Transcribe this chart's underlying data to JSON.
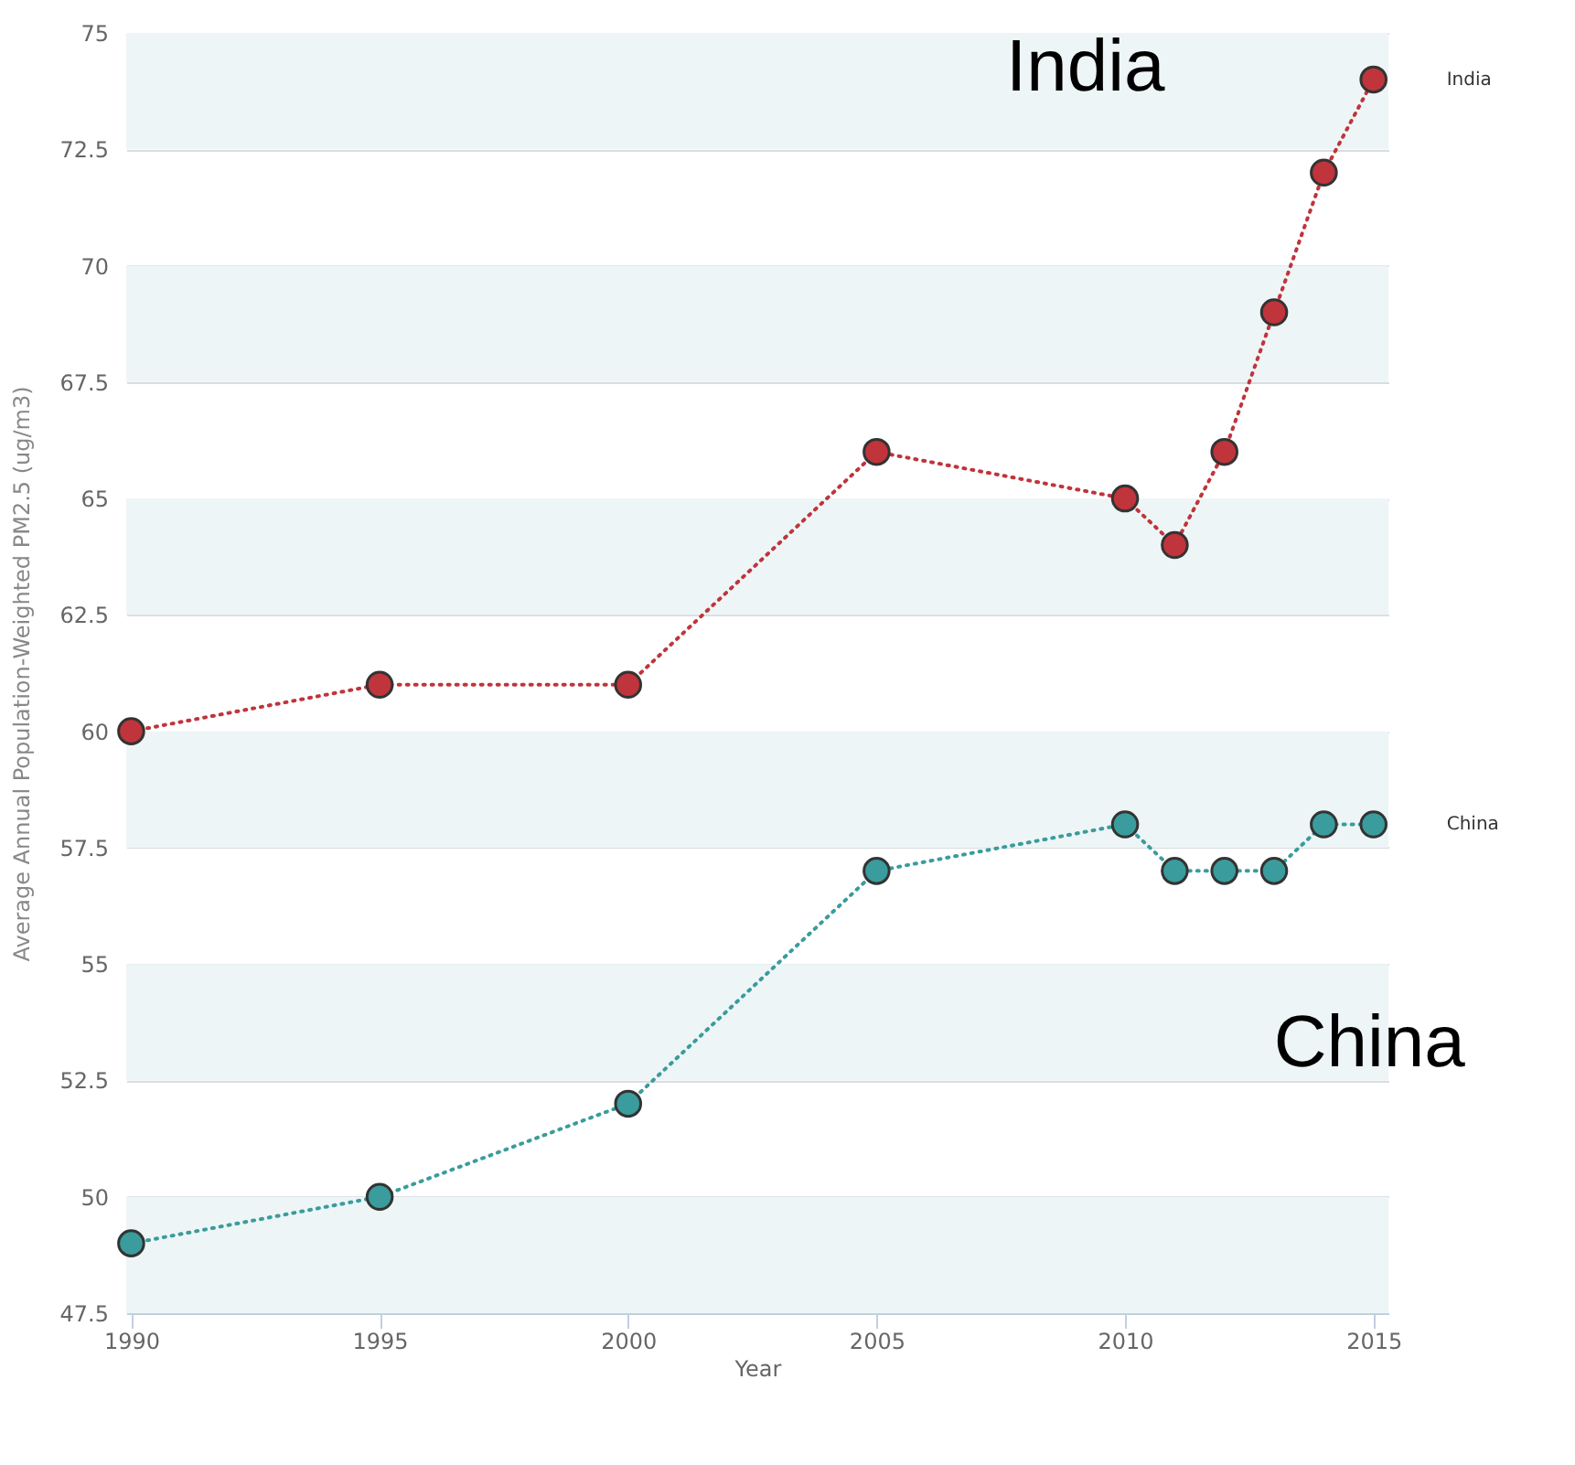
{
  "chart_data": {
    "type": "line",
    "xlabel": "Year",
    "ylabel": "Average Annual Population-Weighted PM2.5 (ug/m3)",
    "x": [
      1990,
      1995,
      2000,
      2005,
      2010,
      2011,
      2012,
      2013,
      2014,
      2015
    ],
    "series": [
      {
        "name": "India",
        "color": "#c0343b",
        "values": [
          60,
          61,
          61,
          66,
          65,
          64,
          66,
          69,
          72,
          74
        ]
      },
      {
        "name": "China",
        "color": "#3a9c9c",
        "values": [
          49,
          50,
          52,
          57,
          58,
          57,
          57,
          57,
          58,
          58
        ]
      }
    ],
    "xlim": [
      1989.9,
      2015.3
    ],
    "xticks": [
      1990,
      1995,
      2000,
      2005,
      2010,
      2015
    ],
    "ylim": [
      47.5,
      75
    ],
    "yticks": [
      47.5,
      50,
      52.5,
      55,
      57.5,
      60,
      62.5,
      65,
      67.5,
      70,
      72.5,
      75
    ],
    "grid": "y",
    "marker": "circle",
    "line_style": "dotted",
    "bands": [
      {
        "axis": "y",
        "from": 47.5,
        "to": 50,
        "color": "#eef5f6"
      },
      {
        "axis": "y",
        "from": 52.5,
        "to": 55,
        "color": "#eef5f6"
      },
      {
        "axis": "y",
        "from": 57.5,
        "to": 60,
        "color": "#eef5f6"
      },
      {
        "axis": "y",
        "from": 62.5,
        "to": 65,
        "color": "#eef5f6"
      },
      {
        "axis": "y",
        "from": 67.5,
        "to": 70,
        "color": "#eef5f6"
      },
      {
        "axis": "y",
        "from": 72.5,
        "to": 75,
        "color": "#eef5f6"
      }
    ],
    "annotations": [
      "India",
      "China"
    ]
  }
}
